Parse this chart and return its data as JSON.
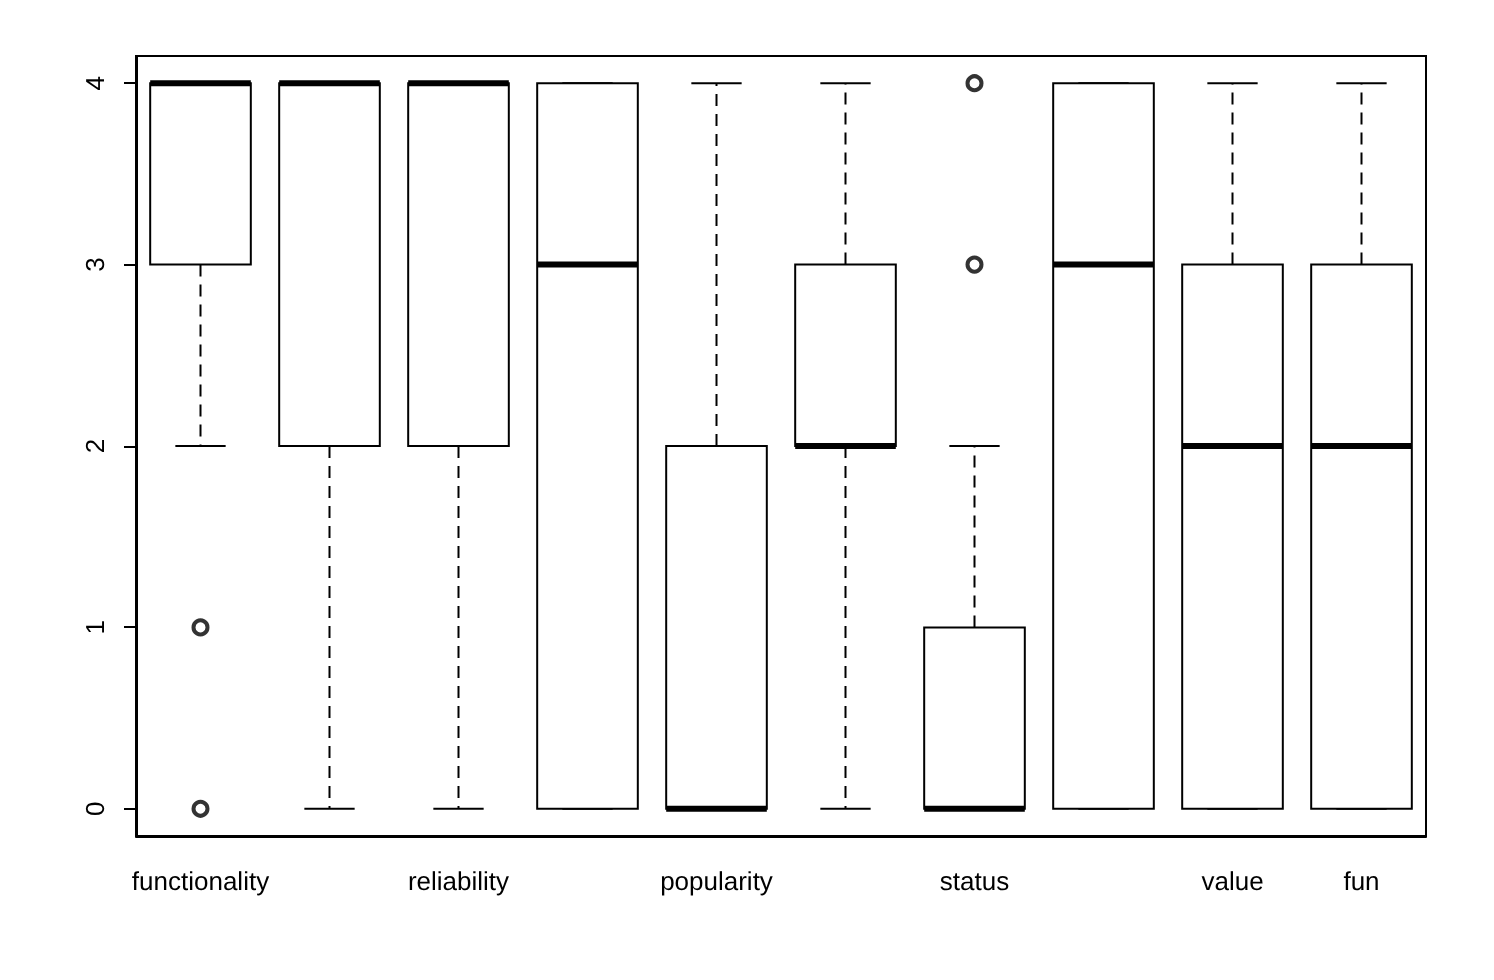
{
  "chart_data": {
    "type": "box",
    "categories": [
      "functionality",
      null,
      "reliability",
      null,
      "popularity",
      null,
      "status",
      null,
      "value",
      "fun"
    ],
    "boxes": [
      {
        "low": 2,
        "q1": 3,
        "median": 4,
        "q3": 4,
        "high": 4,
        "outliers": [
          1,
          0
        ]
      },
      {
        "low": 0,
        "q1": 2,
        "median": 4,
        "q3": 4,
        "high": 4
      },
      {
        "low": 0,
        "q1": 2,
        "median": 4,
        "q3": 4,
        "high": 4
      },
      {
        "low": 0,
        "q1": 0,
        "median": 3,
        "q3": 4,
        "high": 4
      },
      {
        "low": 0,
        "q1": 0,
        "median": 0,
        "q3": 2,
        "high": 4
      },
      {
        "low": 0,
        "q1": 2,
        "median": 2,
        "q3": 3,
        "high": 4
      },
      {
        "low": 0,
        "q1": 0,
        "median": 0,
        "q3": 1,
        "high": 2,
        "outliers": [
          3,
          4
        ]
      },
      {
        "low": 0,
        "q1": 0,
        "median": 3,
        "q3": 4,
        "high": 4
      },
      {
        "low": 0,
        "q1": 0,
        "median": 2,
        "q3": 3,
        "high": 4
      },
      {
        "low": 0,
        "q1": 0,
        "median": 2,
        "q3": 3,
        "high": 4
      }
    ],
    "color": "#000000",
    "ylim": [
      -0.15,
      4.15
    ],
    "yticks": [
      0,
      1,
      2,
      3,
      4
    ],
    "grid": false,
    "line_style": "dashed"
  }
}
